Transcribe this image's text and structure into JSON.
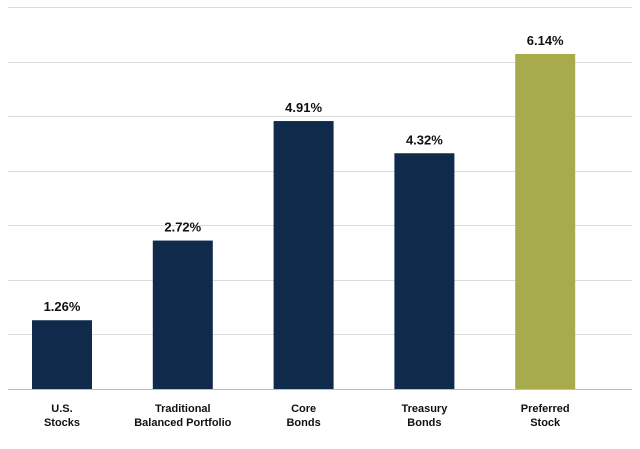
{
  "chart_data": {
    "type": "bar",
    "categories": [
      [
        "U.S.",
        "Stocks"
      ],
      [
        "Traditional",
        "Balanced Portfolio"
      ],
      [
        "Core",
        "Bonds"
      ],
      [
        "Treasury",
        "Bonds"
      ],
      [
        "Preferred",
        "Stock"
      ]
    ],
    "values": [
      1.26,
      2.72,
      4.91,
      4.32,
      6.14
    ],
    "value_labels": [
      "1.26%",
      "2.72%",
      "4.91%",
      "4.32%",
      "6.14%"
    ],
    "bar_colors": [
      "#0f2a4a",
      "#0f2a4a",
      "#0f2a4a",
      "#0f2a4a",
      "#a8ab4b"
    ],
    "grid_color": "#dcdcdc",
    "axis_color": "#bdbdbd",
    "grid": true,
    "ylim": [
      0,
      7
    ],
    "title": "",
    "xlabel": "",
    "ylabel": ""
  }
}
